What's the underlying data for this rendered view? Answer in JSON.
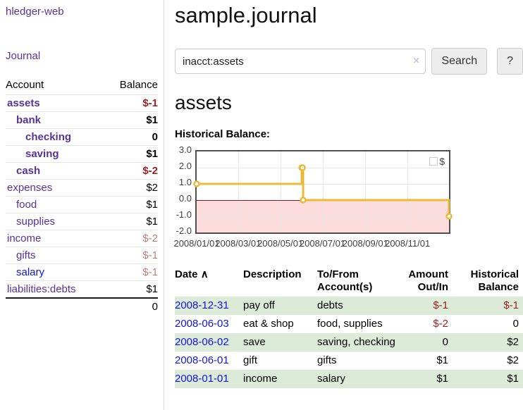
{
  "sidebar": {
    "brand": "hledger-web",
    "journal_link": "Journal",
    "accounts": {
      "headers": {
        "account": "Account",
        "balance": "Balance"
      },
      "rows": [
        {
          "name": "assets",
          "balance": "$-1"
        },
        {
          "name": "bank",
          "balance": "$1"
        },
        {
          "name": "checking",
          "balance": "0"
        },
        {
          "name": "saving",
          "balance": "$1"
        },
        {
          "name": "cash",
          "balance": "$-2"
        },
        {
          "name": "expenses",
          "balance": "$2"
        },
        {
          "name": "food",
          "balance": "$1"
        },
        {
          "name": "supplies",
          "balance": "$1"
        },
        {
          "name": "income",
          "balance": "$-2"
        },
        {
          "name": "gifts",
          "balance": "$-1"
        },
        {
          "name": "salary",
          "balance": "$-1"
        },
        {
          "name": "liabilities:debts",
          "balance": "$1"
        }
      ],
      "total": "0"
    }
  },
  "header": {
    "title": "sample.journal"
  },
  "search": {
    "input_value": "inacct:assets",
    "clear_icon": "×",
    "search_button": "Search",
    "help_button": "?"
  },
  "account_page": {
    "heading": "assets",
    "chart_label": "Historical Balance:"
  },
  "chart_data": {
    "type": "line",
    "step": true,
    "title": "Historical Balance",
    "legend_label": "$",
    "series": [
      {
        "name": "$",
        "points": [
          [
            "2008-01-01",
            1
          ],
          [
            "2008-06-01",
            2
          ],
          [
            "2008-06-02",
            2
          ],
          [
            "2008-06-03",
            0
          ],
          [
            "2008-12-31",
            -1
          ]
        ]
      }
    ],
    "x_range": [
      "2008-01-01",
      "2008-12-31"
    ],
    "x_ticks": [
      "2008/01/01",
      "2008/03/01",
      "2008/05/01",
      "2008/07/01",
      "2008/09/01",
      "2008/11/01"
    ],
    "y_ticks": [
      "3.0",
      "2.0",
      "1.0",
      "0.0",
      "-1.0",
      "-2.0"
    ],
    "ylim": [
      -2,
      3
    ],
    "line_color": "#e8bb3d",
    "marker_fill": "#ffffff",
    "negative_fill": "#fcdcdc",
    "zero_line_color": "#8b1a1a",
    "legend_position": "top-right",
    "grid": true
  },
  "transactions": {
    "headers": {
      "date": "Date",
      "sort_icon": "∧",
      "description": "Description",
      "accounts": "To/From Account(s)",
      "amount": "Amount Out/In",
      "balance": "Historical Balance"
    },
    "rows": [
      {
        "date": "2008-12-31",
        "description": "pay off",
        "accounts": "debts",
        "amount": "$-1",
        "balance": "$-1"
      },
      {
        "date": "2008-06-03",
        "description": "eat & shop",
        "accounts": "food, supplies",
        "amount": "$-2",
        "balance": "0"
      },
      {
        "date": "2008-06-02",
        "description": "save",
        "accounts": "saving, checking",
        "amount": "0",
        "balance": "$2"
      },
      {
        "date": "2008-06-01",
        "description": "gift",
        "accounts": "gifts",
        "amount": "$1",
        "balance": "$2"
      },
      {
        "date": "2008-01-01",
        "description": "income",
        "accounts": "salary",
        "amount": "$1",
        "balance": "$1"
      }
    ]
  }
}
